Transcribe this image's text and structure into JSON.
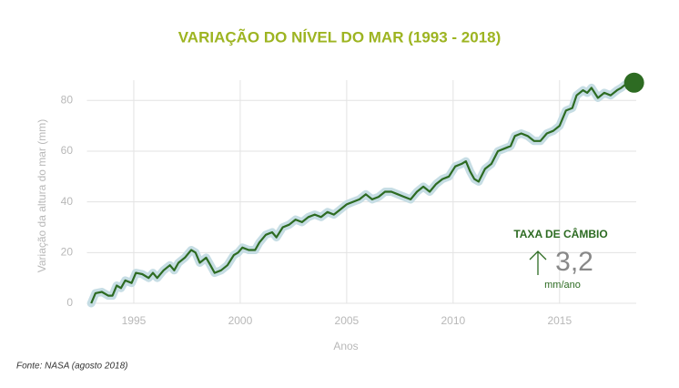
{
  "chart_data": {
    "type": "line",
    "title": "VARIAÇÃO DO NÍVEL DO MAR (1993 - 2018)",
    "xlabel": "Anos",
    "ylabel": "Variação da altura do mar (mm)",
    "source": "Fonte: NASA (agosto 2018)",
    "annotation": {
      "title": "TAXA DE CÂMBIO",
      "value": "3,2",
      "unit": "mm/ano"
    },
    "xlim": [
      1992.8,
      2018.6
    ],
    "ylim": [
      0,
      88
    ],
    "xticks": [
      1995,
      2000,
      2005,
      2010,
      2015
    ],
    "yticks": [
      0,
      20,
      40,
      60,
      80
    ],
    "grid": true,
    "series": [
      {
        "name": "Variação da altura do mar",
        "color": "#2d6b22",
        "band_color": "#c6dde4",
        "x": [
          1993.0,
          1993.2,
          1993.5,
          1993.8,
          1994.0,
          1994.2,
          1994.4,
          1994.6,
          1994.9,
          1995.1,
          1995.4,
          1995.7,
          1995.9,
          1996.1,
          1996.4,
          1996.7,
          1996.9,
          1997.1,
          1997.4,
          1997.7,
          1997.9,
          1998.1,
          1998.4,
          1998.6,
          1998.8,
          1999.1,
          1999.4,
          1999.7,
          1999.9,
          2000.1,
          2000.4,
          2000.7,
          2000.9,
          2001.2,
          2001.5,
          2001.7,
          2002.0,
          2002.3,
          2002.6,
          2002.9,
          2003.2,
          2003.5,
          2003.8,
          2004.1,
          2004.4,
          2004.7,
          2005.0,
          2005.3,
          2005.6,
          2005.9,
          2006.2,
          2006.5,
          2006.8,
          2007.1,
          2007.4,
          2007.7,
          2008.0,
          2008.3,
          2008.6,
          2008.9,
          2009.2,
          2009.5,
          2009.8,
          2010.1,
          2010.4,
          2010.6,
          2010.8,
          2011.0,
          2011.2,
          2011.5,
          2011.8,
          2012.1,
          2012.4,
          2012.7,
          2012.9,
          2013.2,
          2013.5,
          2013.8,
          2014.1,
          2014.4,
          2014.7,
          2015.0,
          2015.3,
          2015.6,
          2015.8,
          2016.1,
          2016.3,
          2016.5,
          2016.8,
          2017.1,
          2017.4,
          2017.7,
          2017.9,
          2018.2,
          2018.5
        ],
        "values": [
          0,
          4,
          4.5,
          3,
          3,
          7,
          6,
          9,
          8,
          12,
          11.5,
          10,
          12,
          10,
          13,
          15,
          13,
          16,
          18,
          21,
          20,
          16,
          18,
          15,
          12,
          13,
          15,
          19,
          20,
          22,
          21,
          21,
          24,
          27,
          28,
          26,
          30,
          31,
          33,
          32,
          34,
          35,
          34,
          36,
          35,
          37,
          39,
          40,
          41,
          43,
          41,
          42,
          44,
          44,
          43,
          42,
          41,
          44,
          46,
          44,
          47,
          49,
          50,
          54,
          55,
          56,
          52,
          49,
          48,
          53,
          55,
          60,
          61,
          62,
          66,
          67,
          66,
          64,
          64,
          67,
          68,
          70,
          76,
          77,
          82,
          84,
          83,
          85,
          81,
          83,
          82,
          84,
          85,
          87,
          87
        ]
      }
    ]
  }
}
